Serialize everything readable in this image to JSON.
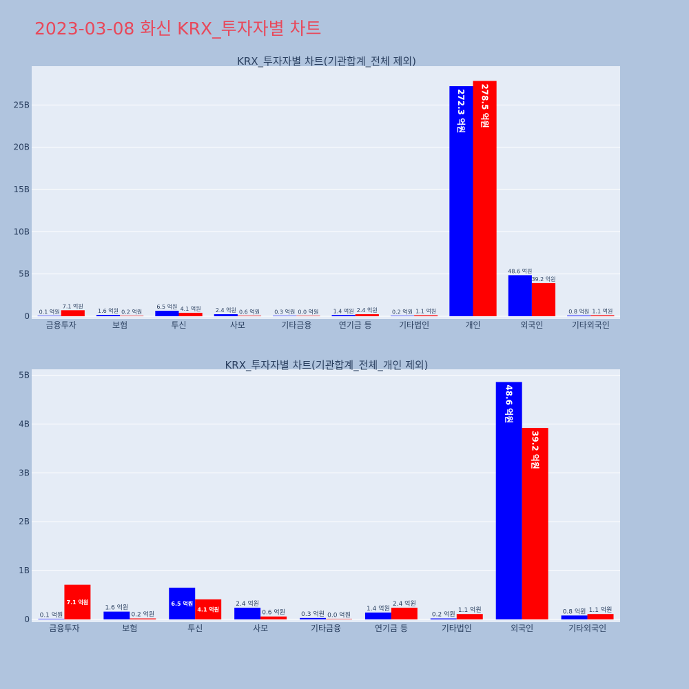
{
  "page_title": "2023-03-08 화신 KRX_투자자별 차트",
  "colors": {
    "buy": "#0000ff",
    "sell": "#ff0000",
    "plot_bg": "#e5ecf6",
    "page_bg": "#b0c4de",
    "title": "#e8485a"
  },
  "chart_data": [
    {
      "type": "bar",
      "title": "KRX_투자자별 차트(기관합계_전체 제외)",
      "categories": [
        "금융투자",
        "보험",
        "투신",
        "사모",
        "기타금융",
        "연기금 등",
        "기타법인",
        "개인",
        "외국인",
        "기타외국인"
      ],
      "series": [
        {
          "color": "#0000ff",
          "values": [
            0.01,
            0.16,
            0.65,
            0.24,
            0.03,
            0.14,
            0.02,
            27.23,
            4.86,
            0.08
          ],
          "labels": [
            "0.1 억원",
            "1.6 억원",
            "6.5 억원",
            "2.4 억원",
            "0.3 억원",
            "1.4 억원",
            "0.2 억원",
            "272.3 억원",
            "48.6 억원",
            "0.8 억원"
          ]
        },
        {
          "color": "#ff0000",
          "values": [
            0.71,
            0.02,
            0.41,
            0.06,
            0.0,
            0.24,
            0.11,
            27.85,
            3.92,
            0.11
          ],
          "labels": [
            "7.1 억원",
            "0.2 억원",
            "4.1 억원",
            "0.6 억원",
            "0.0 억원",
            "2.4 억원",
            "1.1 억원",
            "278.5 억원",
            "39.2 억원",
            "1.1 억원"
          ]
        }
      ],
      "yticks": [
        "0",
        "5B",
        "10B",
        "15B",
        "20B",
        "25B"
      ],
      "ylim": [
        0,
        29.6
      ]
    },
    {
      "type": "bar",
      "title": "KRX_투자자별 차트(기관합계_전체_개인 제외)",
      "categories": [
        "금융투자",
        "보험",
        "투신",
        "사모",
        "기타금융",
        "연기금 등",
        "기타법인",
        "외국인",
        "기타외국인"
      ],
      "series": [
        {
          "color": "#0000ff",
          "values": [
            0.01,
            0.16,
            0.65,
            0.24,
            0.03,
            0.14,
            0.02,
            4.86,
            0.08
          ],
          "labels": [
            "0.1 억원",
            "1.6 억원",
            "6.5 억원",
            "2.4 억원",
            "0.3 억원",
            "1.4 억원",
            "0.2 억원",
            "48.6 억원",
            "0.8 억원"
          ]
        },
        {
          "color": "#ff0000",
          "values": [
            0.71,
            0.02,
            0.41,
            0.06,
            0.0,
            0.24,
            0.11,
            3.92,
            0.11
          ],
          "labels": [
            "7.1 억원",
            "0.2 억원",
            "4.1 억원",
            "0.6 억원",
            "0.0 억원",
            "2.4 억원",
            "1.1 억원",
            "39.2 억원",
            "1.1 억원"
          ]
        }
      ],
      "yticks": [
        "0",
        "1B",
        "2B",
        "3B",
        "4B",
        "5B"
      ],
      "ylim": [
        0,
        5.12
      ]
    }
  ]
}
